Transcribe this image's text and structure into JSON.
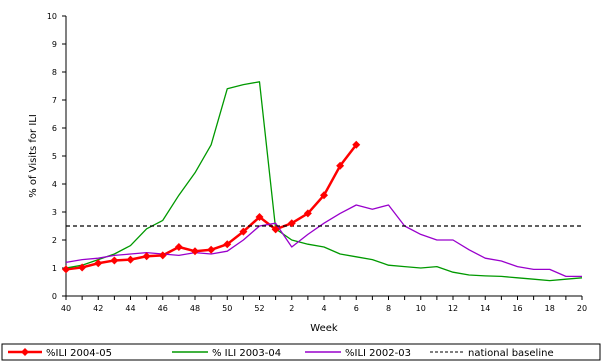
{
  "chart_data": {
    "type": "line",
    "xlabel": "Week",
    "ylabel": "% of Visits for ILI",
    "ylim": [
      0,
      10
    ],
    "y_ticks": [
      "0",
      "1",
      "2",
      "3",
      "4",
      "5",
      "6",
      "7",
      "8",
      "9",
      "10"
    ],
    "x_ticks": [
      "40",
      "42",
      "44",
      "46",
      "48",
      "50",
      "52",
      "2",
      "4",
      "6",
      "8",
      "10",
      "12",
      "14",
      "16",
      "18",
      "20"
    ],
    "weeks": [
      "40",
      "41",
      "42",
      "43",
      "44",
      "45",
      "46",
      "47",
      "48",
      "49",
      "50",
      "51",
      "52",
      "1",
      "2",
      "3",
      "4",
      "5",
      "6",
      "7",
      "8",
      "9",
      "10",
      "11",
      "12",
      "13",
      "14",
      "15",
      "16",
      "17",
      "18",
      "19",
      "20"
    ],
    "legend_position": "bottom",
    "series": [
      {
        "name": "%ILI 2004-05",
        "color": "#ff0000",
        "marker": "diamond",
        "values": [
          0.95,
          1.02,
          1.17,
          1.27,
          1.3,
          1.42,
          1.45,
          1.75,
          1.6,
          1.65,
          1.85,
          2.3,
          2.82,
          2.38,
          2.6,
          2.95,
          3.6,
          4.65,
          5.4
        ]
      },
      {
        "name": "% ILI 2003-04",
        "color": "#009900",
        "values": [
          1.0,
          1.1,
          1.3,
          1.5,
          1.8,
          2.4,
          2.7,
          3.6,
          4.4,
          5.4,
          7.4,
          7.55,
          7.65,
          2.4,
          2.0,
          1.85,
          1.75,
          1.5,
          1.4,
          1.3,
          1.1,
          1.05,
          1.0,
          1.05,
          0.85,
          0.75,
          0.72,
          0.7,
          0.65,
          0.6,
          0.55,
          0.6,
          0.65
        ]
      },
      {
        "name": "%ILI 2002-03",
        "color": "#9900cc",
        "values": [
          1.2,
          1.3,
          1.35,
          1.45,
          1.5,
          1.55,
          1.5,
          1.45,
          1.55,
          1.5,
          1.6,
          2.0,
          2.5,
          2.6,
          1.75,
          2.2,
          2.6,
          2.95,
          3.25,
          3.1,
          3.25,
          2.5,
          2.2,
          2.0,
          2.0,
          1.65,
          1.35,
          1.25,
          1.05,
          0.95,
          0.95,
          0.7,
          0.7
        ]
      },
      {
        "name": "national baseline",
        "color": "#000000",
        "dashed": true,
        "values": [
          2.5,
          2.5
        ]
      }
    ]
  }
}
